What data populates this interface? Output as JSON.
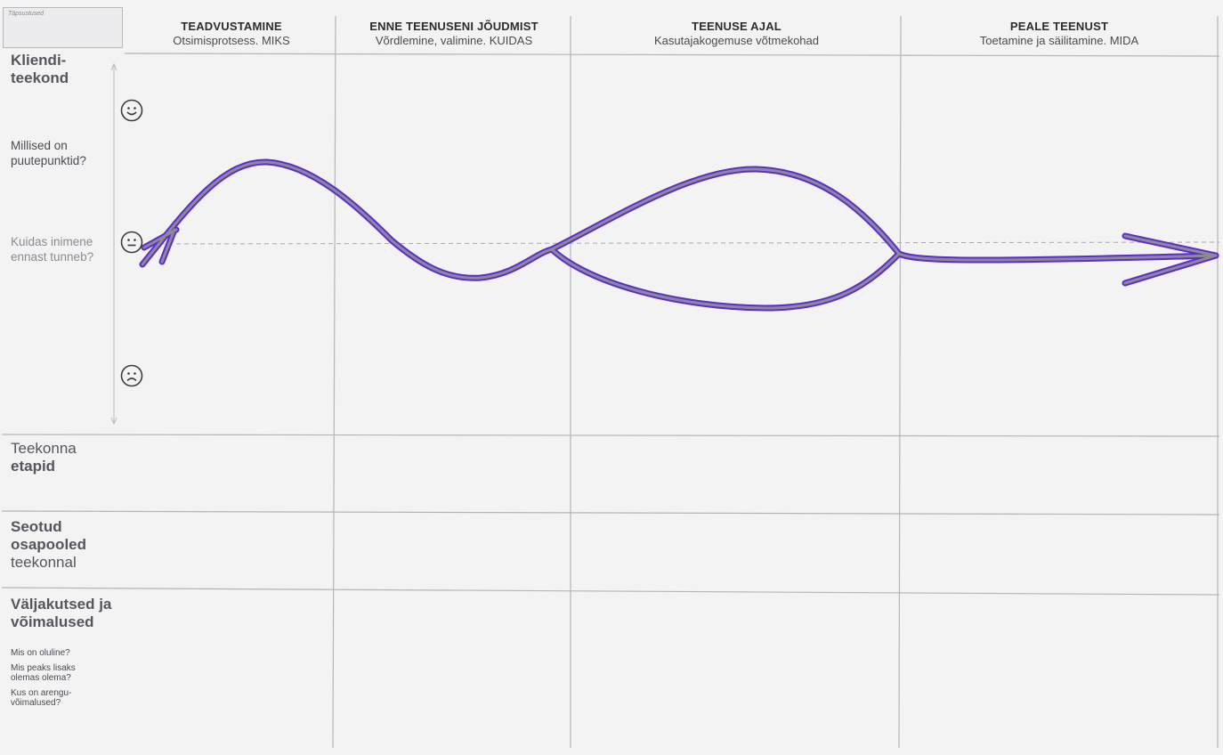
{
  "tag_label": "Täpsustused",
  "columns": [
    {
      "title": "TEADVUSTAMINE",
      "subtitle": "Otsimisprotsess. MIKS"
    },
    {
      "title": "ENNE TEENUSENI JÕUDMIST",
      "subtitle": "Võrdlemine, valimine. KUIDAS"
    },
    {
      "title": "TEENUSE AJAL",
      "subtitle": "Kasutajakogemuse võtmekohad"
    },
    {
      "title": "PEALE TEENUST",
      "subtitle": "Toetamine ja säilitamine. MIDA"
    }
  ],
  "rows": {
    "journey": {
      "title_line1": "Kliendi-",
      "title_line2": "teekond",
      "question1_line1": "Millised on",
      "question1_line2": "puutepunktid?",
      "question2_line1": "Kuidas inimene",
      "question2_line2": "ennast tunneb?"
    },
    "stages": {
      "line1": "Teekonna",
      "line2": "etapid"
    },
    "stakeholders": {
      "line1": "Seotud",
      "line2": "osapooled",
      "line3": "teekonnal"
    },
    "challenges": {
      "line1": "Väljakutsed ja",
      "line2": "võimalused",
      "q1": "Mis on oluline?",
      "q2_line1": "Mis peaks lisaks",
      "q2_line2": "olemas olema?",
      "q3_line1": "Kus on arengu-",
      "q3_line2": "võimalused?"
    }
  },
  "emotion_icons": [
    "smiley-happy-icon",
    "smiley-neutral-icon",
    "smiley-sad-icon"
  ],
  "colors": {
    "grid_line": "#b4b4ba",
    "journey_stroke": "#5d2bd6",
    "journey_core": "#8c8a92",
    "baseline": "#a8a8ae"
  }
}
